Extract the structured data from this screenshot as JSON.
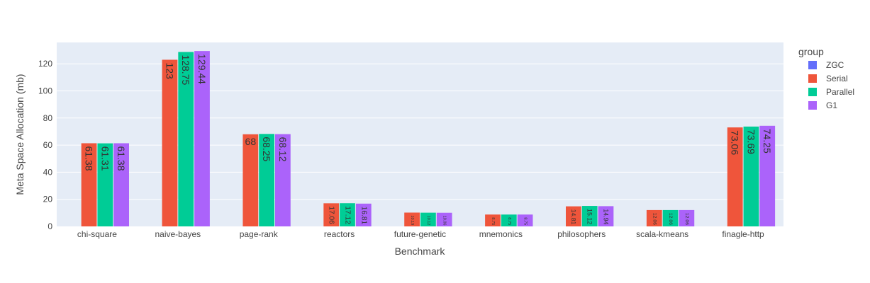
{
  "chart_data": {
    "type": "bar",
    "xlabel": "Benchmark",
    "ylabel": "Meta Space Allocation (mb)",
    "ylim": [
      0,
      130
    ],
    "yticks": [
      0,
      20,
      40,
      60,
      80,
      100,
      120
    ],
    "grid": true,
    "legend_title": "group",
    "legend_position": "right",
    "categories": [
      "chi-square",
      "naive-bayes",
      "page-rank",
      "reactors",
      "future-genetic",
      "mnemonics",
      "philosophers",
      "scala-kmeans",
      "finagle-http"
    ],
    "series": [
      {
        "name": "ZGC",
        "color": "#636efa",
        "values": [
          0,
          0,
          0,
          0,
          0,
          0,
          0,
          0,
          0
        ]
      },
      {
        "name": "Serial",
        "color": "#ef553b",
        "values": [
          61.38,
          123,
          68,
          17.06,
          10.19,
          8.75,
          14.81,
          12.06,
          73.06
        ]
      },
      {
        "name": "Parallel",
        "color": "#00cc96",
        "values": [
          61.31,
          128.75,
          68.25,
          17.12,
          10.12,
          8.75,
          15.12,
          12.06,
          73.69
        ]
      },
      {
        "name": "G1",
        "color": "#ab63fa",
        "values": [
          61.38,
          129.44,
          68.12,
          16.81,
          10.06,
          8.75,
          14.94,
          12.06,
          74.25
        ]
      }
    ]
  }
}
